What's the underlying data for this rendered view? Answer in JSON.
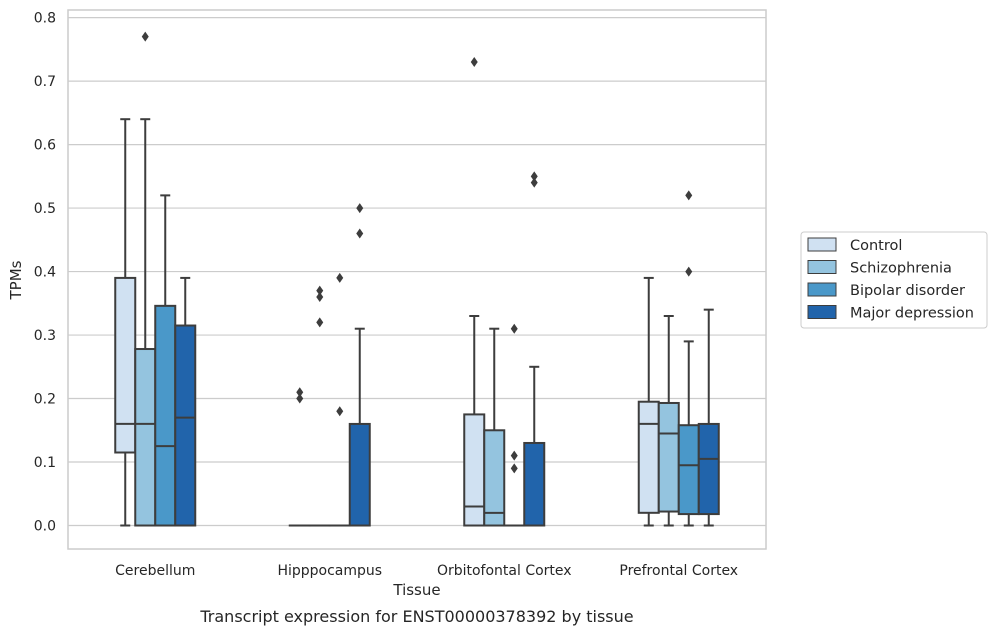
{
  "chart_data": {
    "type": "box",
    "title": "",
    "caption": "Transcript expression for ENST00000378392 by tissue",
    "xlabel": "Tissue",
    "ylabel": "TPMs",
    "ylim": [
      -0.037,
      0.812
    ],
    "yticks": [
      0.0,
      0.1,
      0.2,
      0.3,
      0.4,
      0.5,
      0.6,
      0.7,
      0.8
    ],
    "ytick_labels": [
      "0.0",
      "0.1",
      "0.2",
      "0.3",
      "0.4",
      "0.5",
      "0.6",
      "0.7",
      "0.8"
    ],
    "grid": true,
    "legend_position": "right",
    "categories": [
      "Cerebellum",
      "Hipppocampus",
      "Orbitofontal Cortex",
      "Prefrontal Cortex"
    ],
    "series": [
      {
        "name": "Control",
        "color": "#d0e1f2",
        "boxes": [
          {
            "whislo": 0.0,
            "q1": 0.115,
            "med": 0.16,
            "q3": 0.39,
            "whishi": 0.64,
            "fliers": []
          },
          {
            "whislo": 0.0,
            "q1": 0.0,
            "med": 0.0,
            "q3": 0.0,
            "whishi": 0.0,
            "fliers": [
              0.2,
              0.21
            ]
          },
          {
            "whislo": 0.0,
            "q1": 0.0,
            "med": 0.03,
            "q3": 0.175,
            "whishi": 0.33,
            "fliers": [
              0.73
            ]
          },
          {
            "whislo": 0.0,
            "q1": 0.02,
            "med": 0.16,
            "q3": 0.195,
            "whishi": 0.39,
            "fliers": []
          }
        ]
      },
      {
        "name": "Schizophrenia",
        "color": "#94c4df",
        "boxes": [
          {
            "whislo": 0.0,
            "q1": 0.0,
            "med": 0.16,
            "q3": 0.278,
            "whishi": 0.64,
            "fliers": [
              0.77
            ]
          },
          {
            "whislo": 0.0,
            "q1": 0.0,
            "med": 0.0,
            "q3": 0.0,
            "whishi": 0.0,
            "fliers": [
              0.32,
              0.36,
              0.37
            ]
          },
          {
            "whislo": 0.0,
            "q1": 0.0,
            "med": 0.02,
            "q3": 0.15,
            "whishi": 0.31,
            "fliers": []
          },
          {
            "whislo": 0.0,
            "q1": 0.022,
            "med": 0.145,
            "q3": 0.193,
            "whishi": 0.33,
            "fliers": []
          }
        ]
      },
      {
        "name": "Bipolar disorder",
        "color": "#4a98c9",
        "boxes": [
          {
            "whislo": 0.0,
            "q1": 0.0,
            "med": 0.125,
            "q3": 0.346,
            "whishi": 0.52,
            "fliers": []
          },
          {
            "whislo": 0.0,
            "q1": 0.0,
            "med": 0.0,
            "q3": 0.0,
            "whishi": 0.0,
            "fliers": [
              0.18,
              0.39
            ]
          },
          {
            "whislo": 0.0,
            "q1": 0.0,
            "med": 0.0,
            "q3": 0.0,
            "whishi": 0.0,
            "fliers": [
              0.09,
              0.11,
              0.31
            ]
          },
          {
            "whislo": 0.0,
            "q1": 0.018,
            "med": 0.095,
            "q3": 0.158,
            "whishi": 0.29,
            "fliers": [
              0.4,
              0.52
            ]
          }
        ]
      },
      {
        "name": "Major depression",
        "color": "#2164ab",
        "boxes": [
          {
            "whislo": 0.0,
            "q1": 0.0,
            "med": 0.17,
            "q3": 0.315,
            "whishi": 0.39,
            "fliers": []
          },
          {
            "whislo": 0.0,
            "q1": 0.0,
            "med": 0.0,
            "q3": 0.16,
            "whishi": 0.31,
            "fliers": [
              0.46,
              0.5
            ]
          },
          {
            "whislo": 0.0,
            "q1": 0.0,
            "med": 0.0,
            "q3": 0.13,
            "whishi": 0.25,
            "fliers": [
              0.54,
              0.55
            ]
          },
          {
            "whislo": 0.0,
            "q1": 0.018,
            "med": 0.105,
            "q3": 0.16,
            "whishi": 0.34,
            "fliers": []
          }
        ]
      }
    ]
  }
}
